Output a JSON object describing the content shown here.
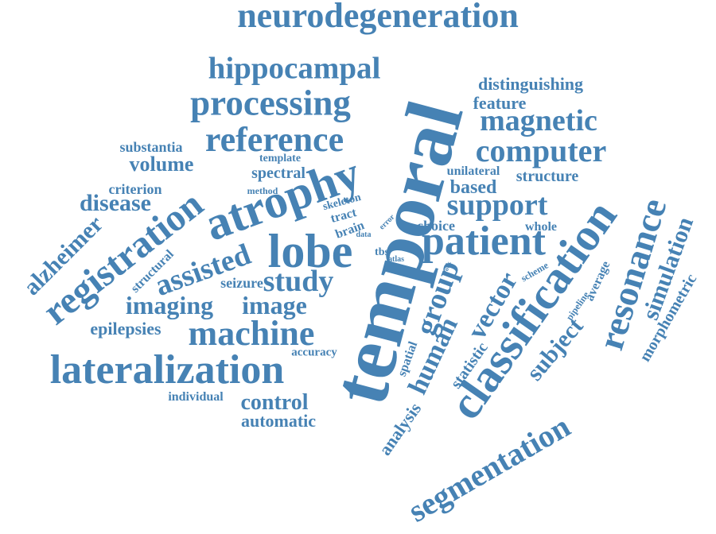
{
  "word_color": "#4682b4",
  "background_color": "#ffffff",
  "words": [
    "neurodegeneration",
    "hippocampal",
    "processing",
    "reference",
    "temporal",
    "distinguishing",
    "feature",
    "magnetic",
    "computer",
    "classification",
    "resonance",
    "simulation",
    "morphometric",
    "substantia",
    "volume",
    "spectral",
    "template",
    "method",
    "unilateral",
    "structure",
    "criterion",
    "disease",
    "atrophy",
    "based",
    "support",
    "skeleton",
    "tract",
    "brain",
    "data",
    "error",
    "choice",
    "whole",
    "registration",
    "lobe",
    "patient",
    "alzheimer",
    "structural",
    "assisted",
    "tbs",
    "atlas",
    "work",
    "scheme",
    "average",
    "seizure",
    "study",
    "group",
    "vector",
    "pipeline",
    "imaging",
    "image",
    "epilepsies",
    "machine",
    "human",
    "statistic",
    "subject",
    "spatial",
    "accuracy",
    "lateralization",
    "analysis",
    "individual",
    "control",
    "automatic",
    "segmentation"
  ]
}
